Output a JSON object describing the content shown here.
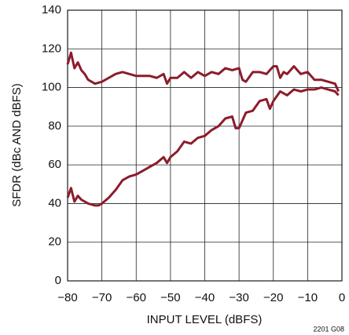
{
  "chart_data": {
    "type": "line",
    "xlabel": "INPUT LEVEL (dBFS)",
    "ylabel": "SFDR (dBc AND dBFS)",
    "note": "2201 G08",
    "xlim": [
      -80,
      0
    ],
    "ylim": [
      0,
      140
    ],
    "xticks": [
      {
        "value": -80,
        "label": "−80"
      },
      {
        "value": -70,
        "label": "−70"
      },
      {
        "value": -60,
        "label": "−60"
      },
      {
        "value": -50,
        "label": "−50"
      },
      {
        "value": -40,
        "label": "−40"
      },
      {
        "value": -30,
        "label": "−30"
      },
      {
        "value": -20,
        "label": "−20"
      },
      {
        "value": -10,
        "label": "−10"
      },
      0
    ],
    "yticks": [
      0,
      20,
      40,
      60,
      80,
      100,
      120,
      140
    ],
    "grid": true,
    "series": [
      {
        "color": "#8c1c2c",
        "x": [
          -80,
          -79,
          -78,
          -77,
          -76,
          -75,
          -74,
          -73,
          -72,
          -70,
          -68,
          -66,
          -64,
          -62,
          -60,
          -58,
          -56,
          -54,
          -52,
          -51,
          -50,
          -48,
          -46,
          -44,
          -42,
          -40,
          -38,
          -36,
          -34,
          -32,
          -30,
          -29,
          -28,
          -26,
          -24,
          -22,
          -20,
          -19,
          -18,
          -17,
          -16,
          -14,
          -12,
          -10,
          -8,
          -6,
          -4,
          -2,
          -1
        ],
        "values": [
          112,
          118,
          110,
          113,
          109,
          107,
          104,
          103,
          102,
          103,
          105,
          107,
          108,
          107,
          106,
          106,
          106,
          105,
          107,
          102,
          105,
          105,
          108,
          105,
          108,
          106,
          108,
          107,
          110,
          109,
          110,
          104,
          103,
          108,
          108,
          107,
          111,
          111,
          105,
          108,
          107,
          111,
          107,
          108,
          104,
          104,
          103,
          102,
          98
        ]
      },
      {
        "color": "#8c1c2c",
        "x": [
          -80,
          -79,
          -78,
          -77,
          -76,
          -74,
          -72,
          -71,
          -70,
          -68,
          -66,
          -64,
          -62,
          -60,
          -58,
          -56,
          -54,
          -52,
          -51,
          -50,
          -48,
          -46,
          -44,
          -42,
          -40,
          -38,
          -36,
          -34,
          -32,
          -31,
          -30,
          -28,
          -26,
          -24,
          -22,
          -21,
          -20,
          -18,
          -16,
          -14,
          -12,
          -10,
          -8,
          -6,
          -4,
          -2,
          -1
        ],
        "values": [
          43,
          48,
          41,
          44,
          42,
          40,
          39,
          39,
          40,
          43,
          47,
          52,
          54,
          55,
          57,
          59,
          61,
          64,
          61,
          64,
          67,
          72,
          71,
          74,
          75,
          78,
          80,
          84,
          85,
          79,
          79,
          87,
          88,
          93,
          94,
          89,
          93,
          98,
          96,
          99,
          98,
          99,
          99,
          100,
          99,
          98,
          96
        ]
      }
    ]
  }
}
